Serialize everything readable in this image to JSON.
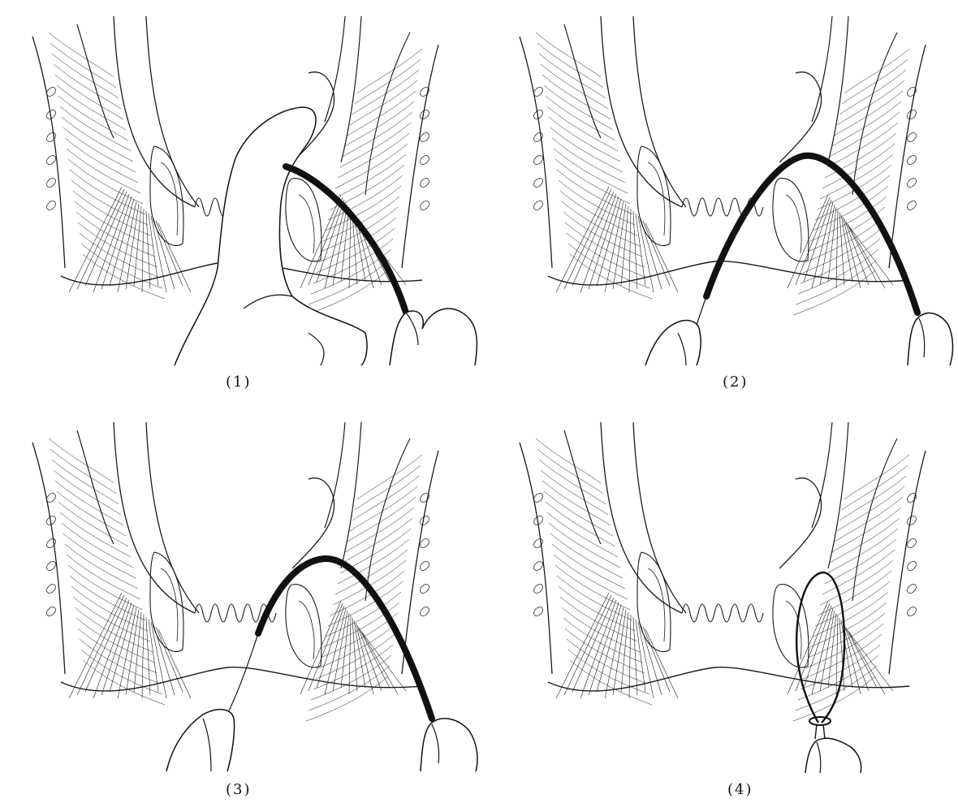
{
  "figure": {
    "panels": [
      {
        "label": "(1)",
        "step": 1,
        "tool": "finger-guided-probe"
      },
      {
        "label": "(2)",
        "step": 2,
        "tool": "probe-pulled-through"
      },
      {
        "label": "(3)",
        "step": 3,
        "tool": "probe-with-ligature"
      },
      {
        "label": "(4)",
        "step": 4,
        "tool": "ligature-loop-tied"
      }
    ]
  },
  "colors": {
    "ink": "#1a1a1a",
    "paper": "#ffffff",
    "probe": "#111111"
  }
}
